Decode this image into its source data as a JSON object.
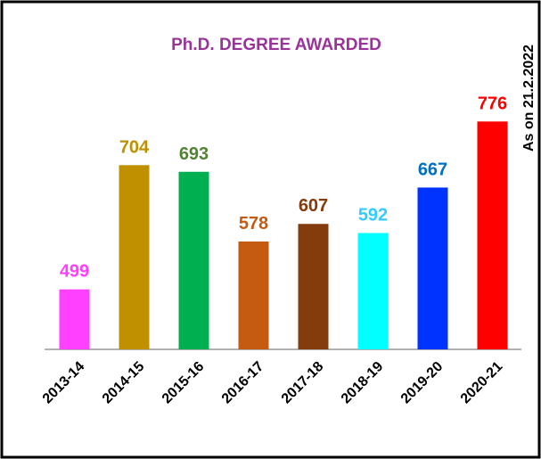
{
  "chart_data": {
    "type": "bar",
    "title": "Ph.D. DEGREE AWARDED",
    "annotation": "As on 21.2.2022",
    "categories": [
      "2013-14",
      "2014-15",
      "2015-16",
      "2016-17",
      "2017-18",
      "2018-19",
      "2019-20",
      "2020-21"
    ],
    "values": [
      499,
      704,
      693,
      578,
      607,
      592,
      667,
      776
    ],
    "colors": [
      "#ff40ff",
      "#bf9000",
      "#00b050",
      "#c55a11",
      "#843c0c",
      "#00ffff",
      "#0033ff",
      "#ff0000"
    ],
    "label_colors": [
      "#ff40ff",
      "#bf9000",
      "#548235",
      "#c55a11",
      "#843c0c",
      "#33ccff",
      "#0070c0",
      "#ff0000"
    ],
    "ylim": [
      400,
      800
    ]
  }
}
